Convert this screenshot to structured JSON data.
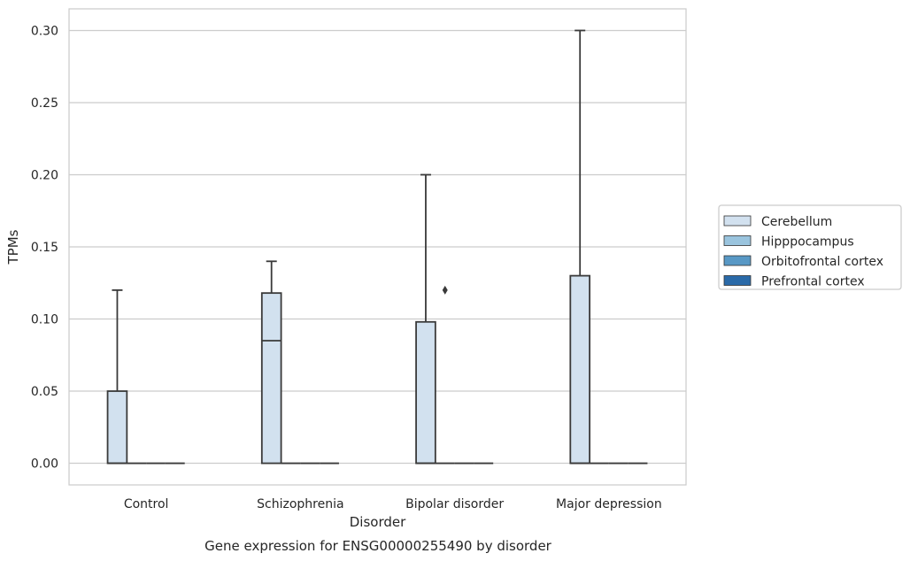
{
  "caption": "Gene expression for ENSG00000255490 by disorder",
  "chart_data": {
    "type": "box",
    "xlabel": "Disorder",
    "ylabel": "TPMs",
    "ylim": [
      -0.015,
      0.315
    ],
    "yticks": [
      "0.00",
      "0.05",
      "0.10",
      "0.15",
      "0.20",
      "0.25",
      "0.30"
    ],
    "ytick_values": [
      0,
      0.05,
      0.1,
      0.15,
      0.2,
      0.25,
      0.3
    ],
    "grid": true,
    "legend_position": "right",
    "categories": [
      "Control",
      "Schizophrenia",
      "Bipolar disorder",
      "Major depression"
    ],
    "series": [
      {
        "name": "Cerebellum",
        "color": "#d2e1ef",
        "boxes": [
          {
            "min": 0,
            "q1": 0,
            "median": 0,
            "q3": 0.05,
            "max": 0.12,
            "outliers": []
          },
          {
            "min": 0,
            "q1": 0,
            "median": 0.085,
            "q3": 0.118,
            "max": 0.14,
            "outliers": []
          },
          {
            "min": 0,
            "q1": 0,
            "median": 0,
            "q3": 0.098,
            "max": 0.2,
            "outliers": []
          },
          {
            "min": 0,
            "q1": 0,
            "median": 0,
            "q3": 0.13,
            "max": 0.3,
            "outliers": []
          }
        ]
      },
      {
        "name": "Hipppocampus",
        "color": "#9ac4de",
        "boxes": [
          {
            "min": 0,
            "q1": 0,
            "median": 0,
            "q3": 0,
            "max": 0,
            "outliers": []
          },
          {
            "min": 0,
            "q1": 0,
            "median": 0,
            "q3": 0,
            "max": 0,
            "outliers": []
          },
          {
            "min": 0,
            "q1": 0,
            "median": 0,
            "q3": 0,
            "max": 0,
            "outliers": [
              0.12
            ]
          },
          {
            "min": 0,
            "q1": 0,
            "median": 0,
            "q3": 0,
            "max": 0,
            "outliers": []
          }
        ]
      },
      {
        "name": "Orbitofrontal cortex",
        "color": "#5898c5",
        "boxes": [
          {
            "min": 0,
            "q1": 0,
            "median": 0,
            "q3": 0,
            "max": 0,
            "outliers": []
          },
          {
            "min": 0,
            "q1": 0,
            "median": 0,
            "q3": 0,
            "max": 0,
            "outliers": []
          },
          {
            "min": 0,
            "q1": 0,
            "median": 0,
            "q3": 0,
            "max": 0,
            "outliers": []
          },
          {
            "min": 0,
            "q1": 0,
            "median": 0,
            "q3": 0,
            "max": 0,
            "outliers": []
          }
        ]
      },
      {
        "name": "Prefrontal cortex",
        "color": "#2a6aa8",
        "boxes": [
          {
            "min": 0,
            "q1": 0,
            "median": 0,
            "q3": 0,
            "max": 0,
            "outliers": []
          },
          {
            "min": 0,
            "q1": 0,
            "median": 0,
            "q3": 0,
            "max": 0,
            "outliers": []
          },
          {
            "min": 0,
            "q1": 0,
            "median": 0,
            "q3": 0,
            "max": 0,
            "outliers": []
          },
          {
            "min": 0,
            "q1": 0,
            "median": 0,
            "q3": 0,
            "max": 0,
            "outliers": []
          }
        ]
      }
    ]
  }
}
